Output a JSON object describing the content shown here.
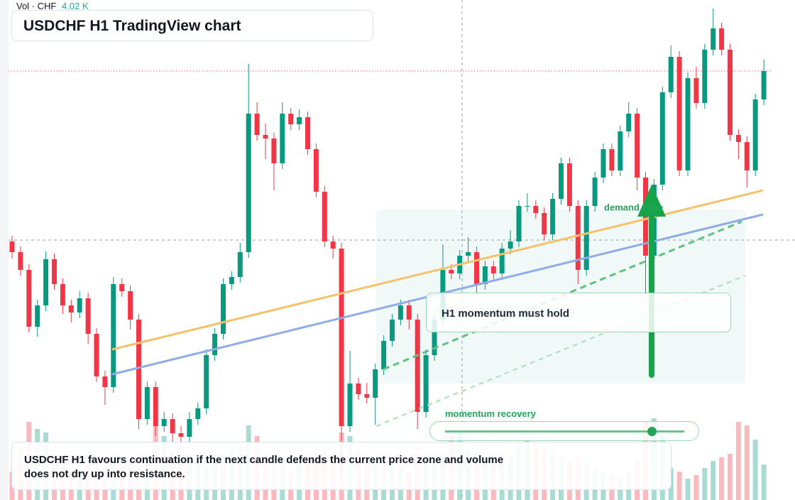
{
  "chart_data": {
    "type": "candlestick",
    "title": "USDCHF H1 TradingView chart",
    "volume_label": "Vol · CHF",
    "volume_value": "4.02 K",
    "caption": "USDCHF H1 favours continuation if the next candle defends the current price zone and volume does not dry up into resistance.",
    "annotations": [
      "demand zone",
      "H1 momentum must hold",
      "momentum recovery"
    ],
    "up_color": "#089981",
    "down_color": "#f23645",
    "ylim": [
      0,
      704
    ],
    "volume_lim": [
      0,
      120
    ],
    "open": [
      364,
      349,
      324,
      244,
      274,
      339,
      304,
      274,
      264,
      284,
      234,
      174,
      159,
      304,
      294,
      254,
      114,
      159,
      104,
      114,
      94,
      89,
      114,
      129,
      204,
      234,
      304,
      314,
      349,
      544,
      514,
      509,
      474,
      544,
      529,
      539,
      494,
      434,
      364,
      354,
      104,
      164,
      149,
      144,
      184,
      224,
      254,
      274,
      254,
      124,
      204,
      254,
      324,
      319,
      344,
      349,
      304,
      329,
      319,
      354,
      364,
      414,
      414,
      404,
      374,
      424,
      474,
      414,
      324,
      414,
      454,
      494,
      464,
      519,
      544,
      454,
      344,
      444,
      574,
      624,
      464,
      594,
      559,
      634,
      664,
      634,
      514,
      504,
      464,
      564
    ],
    "high": [
      372,
      357,
      332,
      282,
      350,
      347,
      312,
      282,
      294,
      292,
      242,
      182,
      314,
      312,
      302,
      262,
      167,
      167,
      124,
      122,
      104,
      124,
      137,
      212,
      242,
      312,
      322,
      362,
      614,
      560,
      530,
      517,
      560,
      552,
      550,
      547,
      502,
      442,
      372,
      362,
      210,
      172,
      165,
      192,
      232,
      262,
      282,
      282,
      262,
      212,
      262,
      360,
      332,
      352,
      370,
      357,
      337,
      337,
      362,
      380,
      422,
      432,
      422,
      412,
      432,
      482,
      482,
      422,
      422,
      462,
      502,
      502,
      527,
      560,
      552,
      462,
      452,
      582,
      640,
      632,
      602,
      610,
      642,
      692,
      672,
      642,
      522,
      512,
      572,
      620
    ],
    "low": [
      340,
      316,
      236,
      230,
      266,
      296,
      262,
      250,
      256,
      220,
      166,
      134,
      151,
      286,
      240,
      100,
      106,
      90,
      96,
      80,
      70,
      81,
      106,
      121,
      196,
      226,
      296,
      306,
      341,
      506,
      480,
      436,
      466,
      521,
      521,
      486,
      426,
      356,
      340,
      40,
      96,
      141,
      136,
      106,
      176,
      216,
      246,
      240,
      100,
      116,
      196,
      246,
      311,
      311,
      336,
      290,
      296,
      311,
      311,
      346,
      356,
      406,
      396,
      366,
      366,
      416,
      406,
      304,
      316,
      406,
      446,
      456,
      456,
      511,
      436,
      290,
      336,
      436,
      566,
      456,
      456,
      551,
      551,
      626,
      626,
      506,
      480,
      440,
      456,
      556
    ],
    "close": [
      349,
      324,
      244,
      274,
      339,
      304,
      274,
      264,
      284,
      234,
      174,
      159,
      304,
      294,
      254,
      114,
      159,
      104,
      114,
      94,
      89,
      114,
      129,
      204,
      234,
      304,
      314,
      349,
      544,
      514,
      509,
      474,
      544,
      529,
      539,
      494,
      434,
      364,
      354,
      104,
      164,
      149,
      144,
      184,
      224,
      254,
      274,
      254,
      124,
      204,
      254,
      324,
      319,
      344,
      349,
      304,
      329,
      319,
      354,
      364,
      414,
      414,
      404,
      374,
      424,
      474,
      414,
      324,
      414,
      454,
      494,
      464,
      519,
      544,
      454,
      344,
      444,
      574,
      624,
      464,
      594,
      559,
      634,
      664,
      634,
      514,
      504,
      464,
      564,
      604
    ],
    "volume": [
      40,
      75,
      110,
      100,
      95,
      60,
      45,
      35,
      40,
      50,
      55,
      45,
      60,
      50,
      45,
      40,
      65,
      110,
      90,
      70,
      60,
      55,
      50,
      45,
      50,
      60,
      70,
      80,
      105,
      90,
      60,
      50,
      45,
      40,
      55,
      50,
      60,
      70,
      65,
      95,
      90,
      70,
      60,
      55,
      50,
      55,
      45,
      40,
      75,
      65,
      55,
      60,
      90,
      95,
      70,
      60,
      55,
      50,
      55,
      60,
      80,
      85,
      80,
      75,
      65,
      60,
      55,
      60,
      50,
      45,
      40,
      35,
      30,
      40,
      55,
      110,
      115,
      90,
      45,
      40,
      30,
      35,
      45,
      55,
      60,
      65,
      110,
      105,
      85,
      50
    ]
  }
}
